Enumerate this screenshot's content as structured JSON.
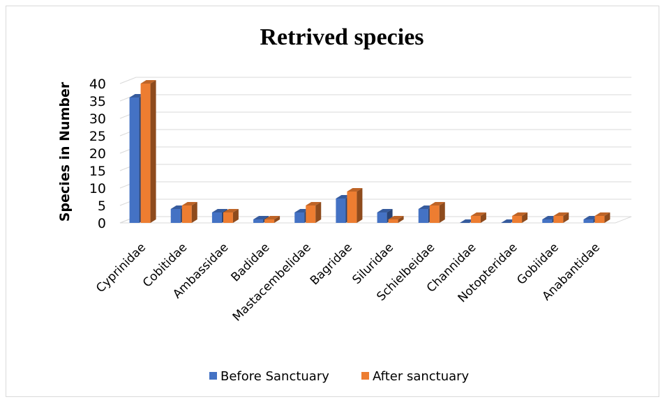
{
  "chart_data": {
    "type": "bar",
    "title": "Retrived species",
    "ylabel": "Species in Number",
    "xlabel": "",
    "ylim": [
      0,
      40
    ],
    "yticks": [
      0,
      5,
      10,
      15,
      20,
      25,
      30,
      35,
      40
    ],
    "grid": true,
    "legend_position": "bottom",
    "categories": [
      "Cyprinidae",
      "Cobitidae",
      "Ambassidae",
      "Badidae",
      "Mastacembelidae",
      "Bagridae",
      "Siluridae",
      "Schielbeidae",
      "Channidae",
      "Notopteridae",
      "Gobiidae",
      "Anabantidae"
    ],
    "series": [
      {
        "name": "Before Sanctuary",
        "color": "#4472c4",
        "values": [
          36,
          4,
          3,
          1,
          3,
          7,
          3,
          4,
          0,
          0,
          1,
          1
        ]
      },
      {
        "name": "After sanctuary",
        "color": "#ed7d31",
        "values": [
          40,
          5,
          3,
          1,
          5,
          9,
          1,
          5,
          2,
          2,
          2,
          2
        ]
      }
    ]
  }
}
